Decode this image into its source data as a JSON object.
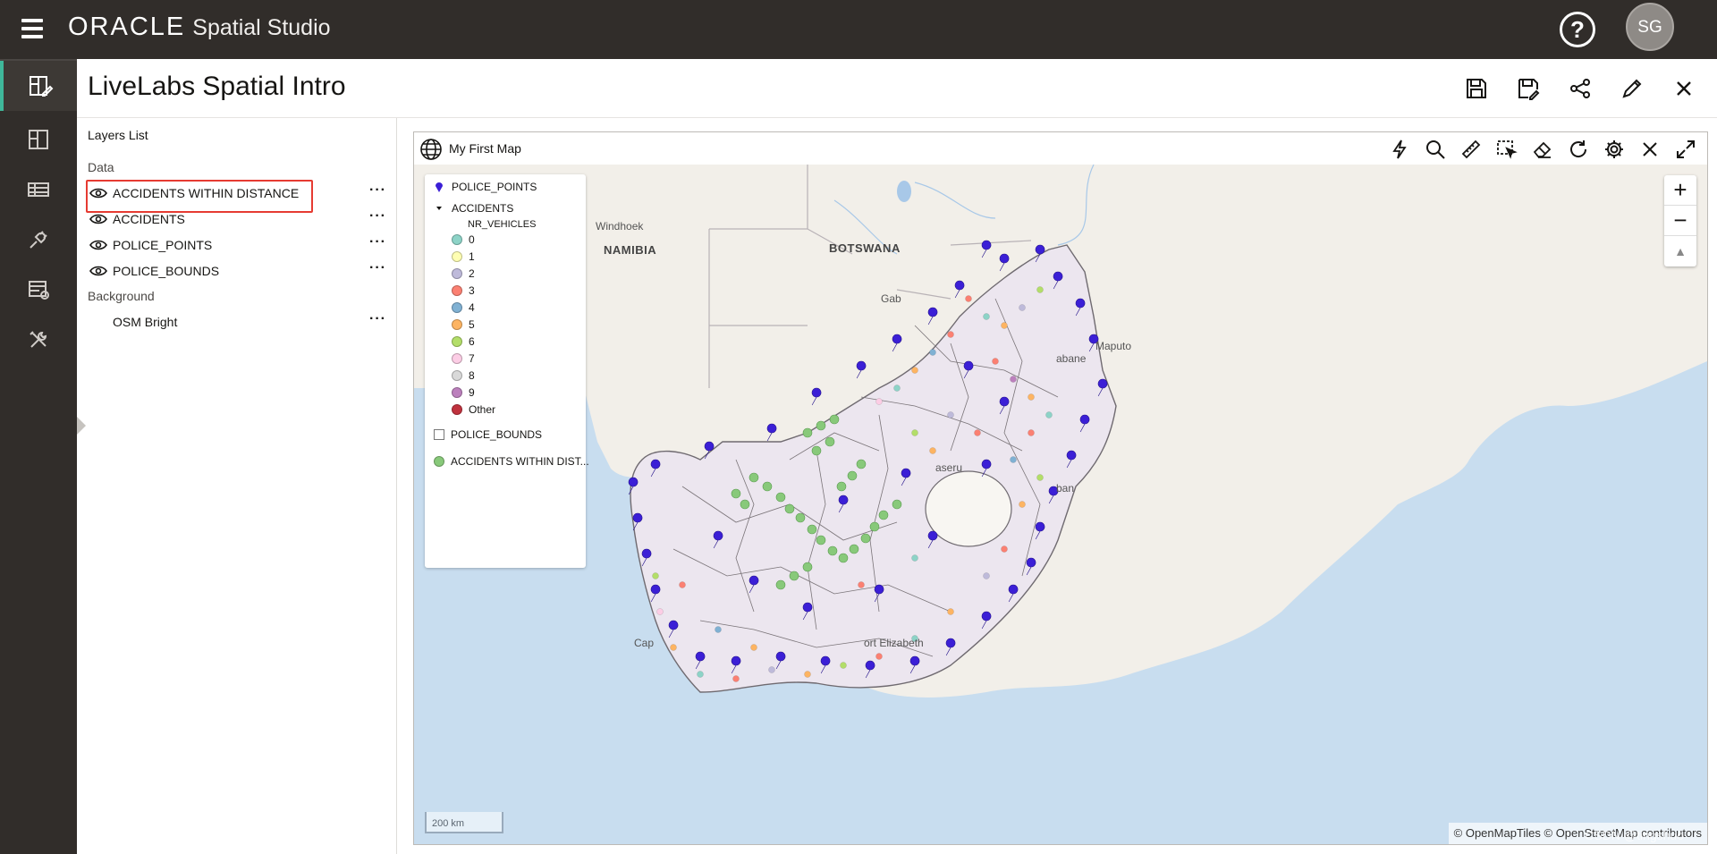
{
  "app": {
    "brand_oracle": "ORACLE",
    "brand_product": "Spatial Studio",
    "help_label": "?",
    "user_initials": "SG"
  },
  "rail": {
    "items": [
      {
        "icon": "project-edit-icon",
        "active": true
      },
      {
        "icon": "dashboard-icon",
        "active": false
      },
      {
        "icon": "datasets-table-icon",
        "active": false
      },
      {
        "icon": "connections-plug-icon",
        "active": false
      },
      {
        "icon": "jobs-icon",
        "active": false
      },
      {
        "icon": "tools-icon",
        "active": false
      }
    ]
  },
  "header": {
    "title": "LiveLabs Spatial Intro",
    "actions": [
      "save-icon",
      "save-as-icon",
      "share-icon",
      "edit-pencil-icon",
      "close-icon"
    ]
  },
  "layers_panel": {
    "title": "Layers List",
    "data_section": "Data",
    "background_section": "Background",
    "data_layers": [
      {
        "name": "ACCIDENTS WITHIN DISTANCE",
        "visible": true
      },
      {
        "name": "ACCIDENTS",
        "visible": true
      },
      {
        "name": "POLICE_POINTS",
        "visible": true
      },
      {
        "name": "POLICE_BOUNDS",
        "visible": true
      }
    ],
    "background_layers": [
      {
        "name": "OSM Bright"
      }
    ],
    "more_label": "···"
  },
  "map": {
    "title": "My First Map",
    "tools": [
      "flash-icon",
      "search-icon",
      "measure-ruler-icon",
      "select-area-icon",
      "eraser-icon",
      "refresh-icon",
      "settings-gear-icon",
      "close-icon",
      "fullscreen-expand-icon"
    ],
    "zoom_in": "+",
    "zoom_out": "−",
    "reset_north": "▲",
    "scale_label": "200 km",
    "attribution": "© OpenMapTiles  © OpenStreetMap contributors",
    "watermark": "CSDN @tingshuo",
    "places": {
      "windhoek": "Windhoek",
      "namibia": "NAMIBIA",
      "botswana": "BOTSWANA",
      "gaborone": "Gab",
      "maputo": "Maputo",
      "mbabane": "abane",
      "maseru": "aseru",
      "durban": "ban",
      "cape_town": "Cap",
      "port_elizabeth": "ort Elizabeth"
    },
    "colors": {
      "police": "#3b1fd6",
      "accidents_within": "#88c97a",
      "land": "#f2efe9",
      "sa_fill": "#ece6ef",
      "water": "#c8ddef"
    }
  },
  "legend": {
    "police_points": "POLICE_POINTS",
    "accidents": "ACCIDENTS",
    "nr_vehicles": "NR_VEHICLES",
    "classes": [
      {
        "label": "0",
        "color": "#8dd3c7"
      },
      {
        "label": "1",
        "color": "#ffffb3"
      },
      {
        "label": "2",
        "color": "#bebada"
      },
      {
        "label": "3",
        "color": "#fb8072"
      },
      {
        "label": "4",
        "color": "#80b1d3"
      },
      {
        "label": "5",
        "color": "#fdb462"
      },
      {
        "label": "6",
        "color": "#b3de69"
      },
      {
        "label": "7",
        "color": "#fccde5"
      },
      {
        "label": "8",
        "color": "#d9d9d9"
      },
      {
        "label": "9",
        "color": "#bc80bd"
      },
      {
        "label": "Other",
        "color": "#c0323e"
      }
    ],
    "police_bounds": "POLICE_BOUNDS",
    "accidents_within": "ACCIDENTS WITHIN DIST..."
  }
}
